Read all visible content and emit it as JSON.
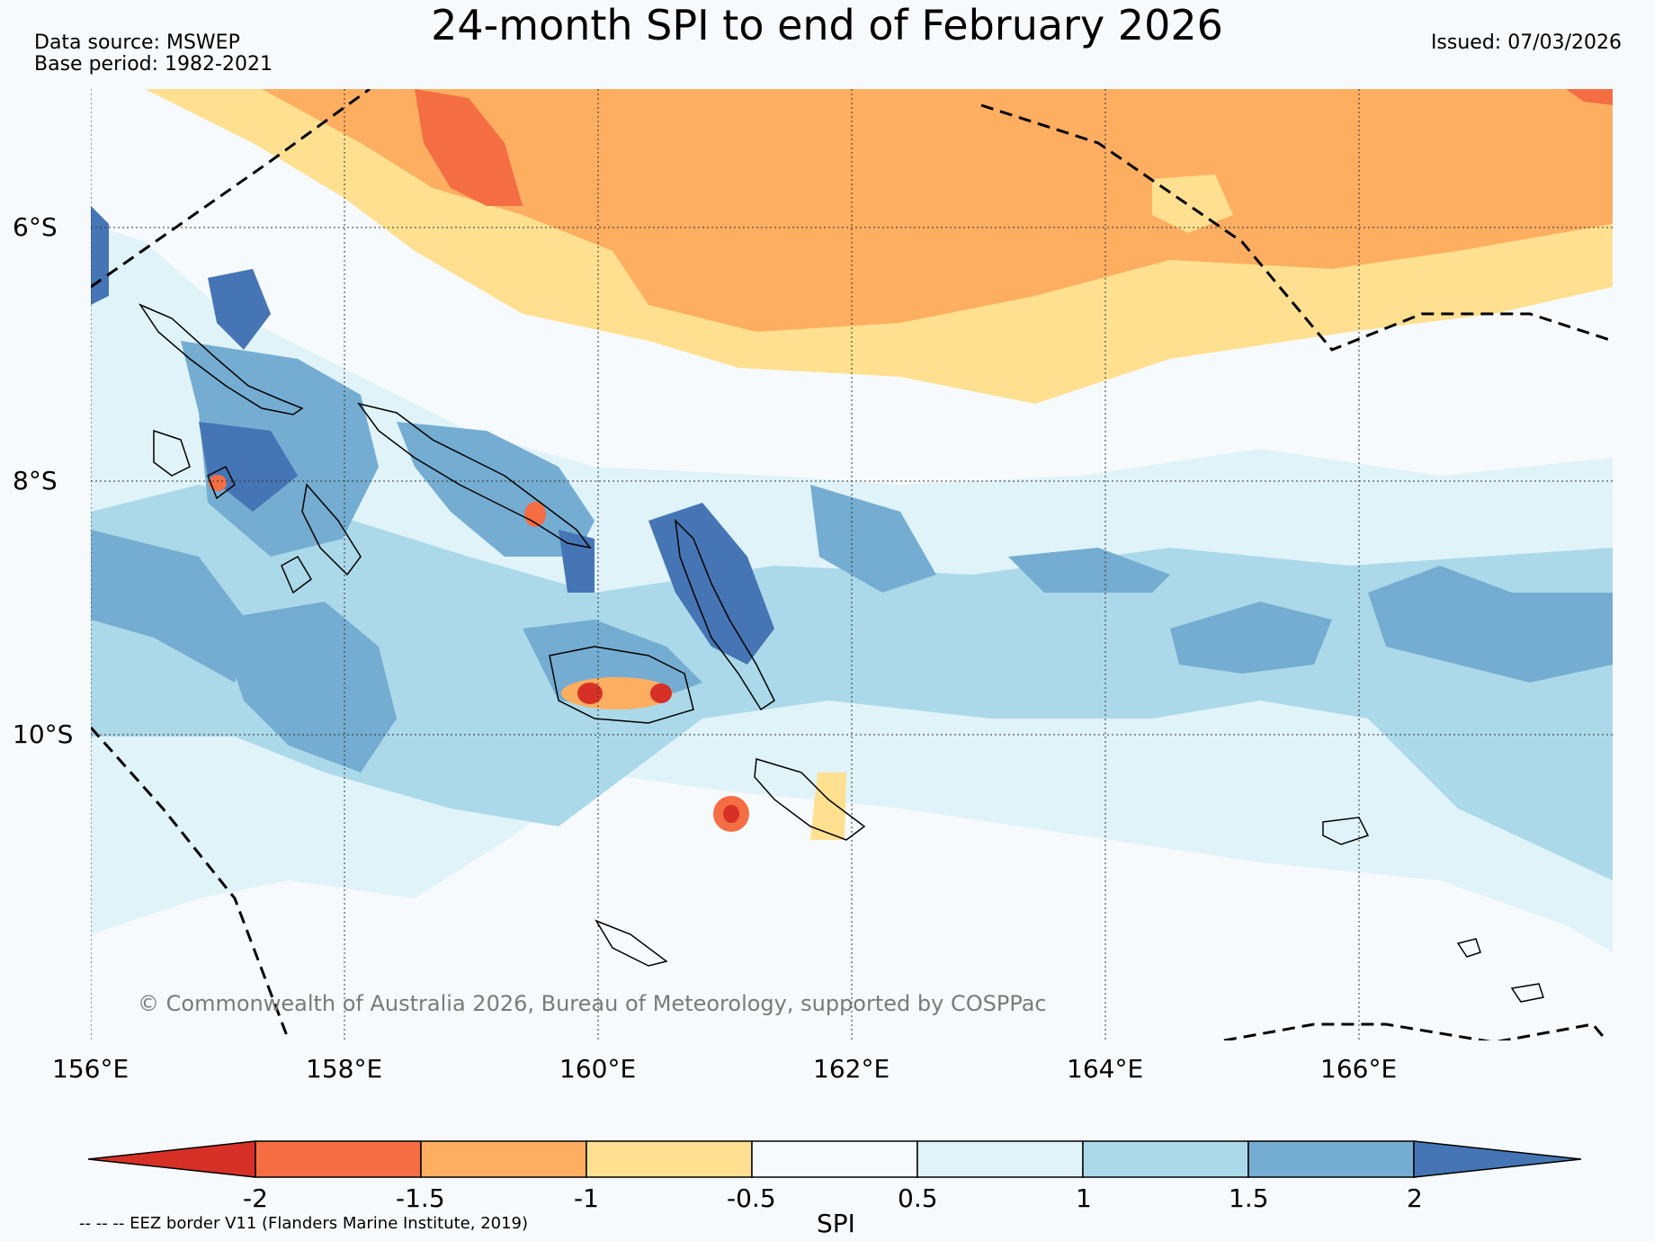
{
  "title": "24-month SPI to end of February 2026",
  "header": {
    "data_source": "Data source: MSWEP",
    "base_period": "Base period: 1982-2021",
    "issued": "Issued: 07/03/2026"
  },
  "map": {
    "lat_labels": [
      "6°S",
      "8°S",
      "10°S"
    ],
    "lon_labels": [
      "156°E",
      "158°E",
      "160°E",
      "162°E",
      "164°E",
      "166°E"
    ],
    "credit": "© Commonwealth of Australia 2026, Bureau of Meteorology, supported by COSPPac"
  },
  "colorbar": {
    "ticks": [
      "-2",
      "-1.5",
      "-1",
      "-0.5",
      "0.5",
      "1",
      "1.5",
      "2"
    ],
    "label": "SPI",
    "colors": [
      "#d73027",
      "#f46d43",
      "#fdae61",
      "#fee090",
      "#f7fafc",
      "#e0f3f8",
      "#abd9e9",
      "#74add1",
      "#4575b4"
    ]
  },
  "legend_note": "-- -- -- EEZ border V11 (Flanders Marine Institute, 2019)"
}
